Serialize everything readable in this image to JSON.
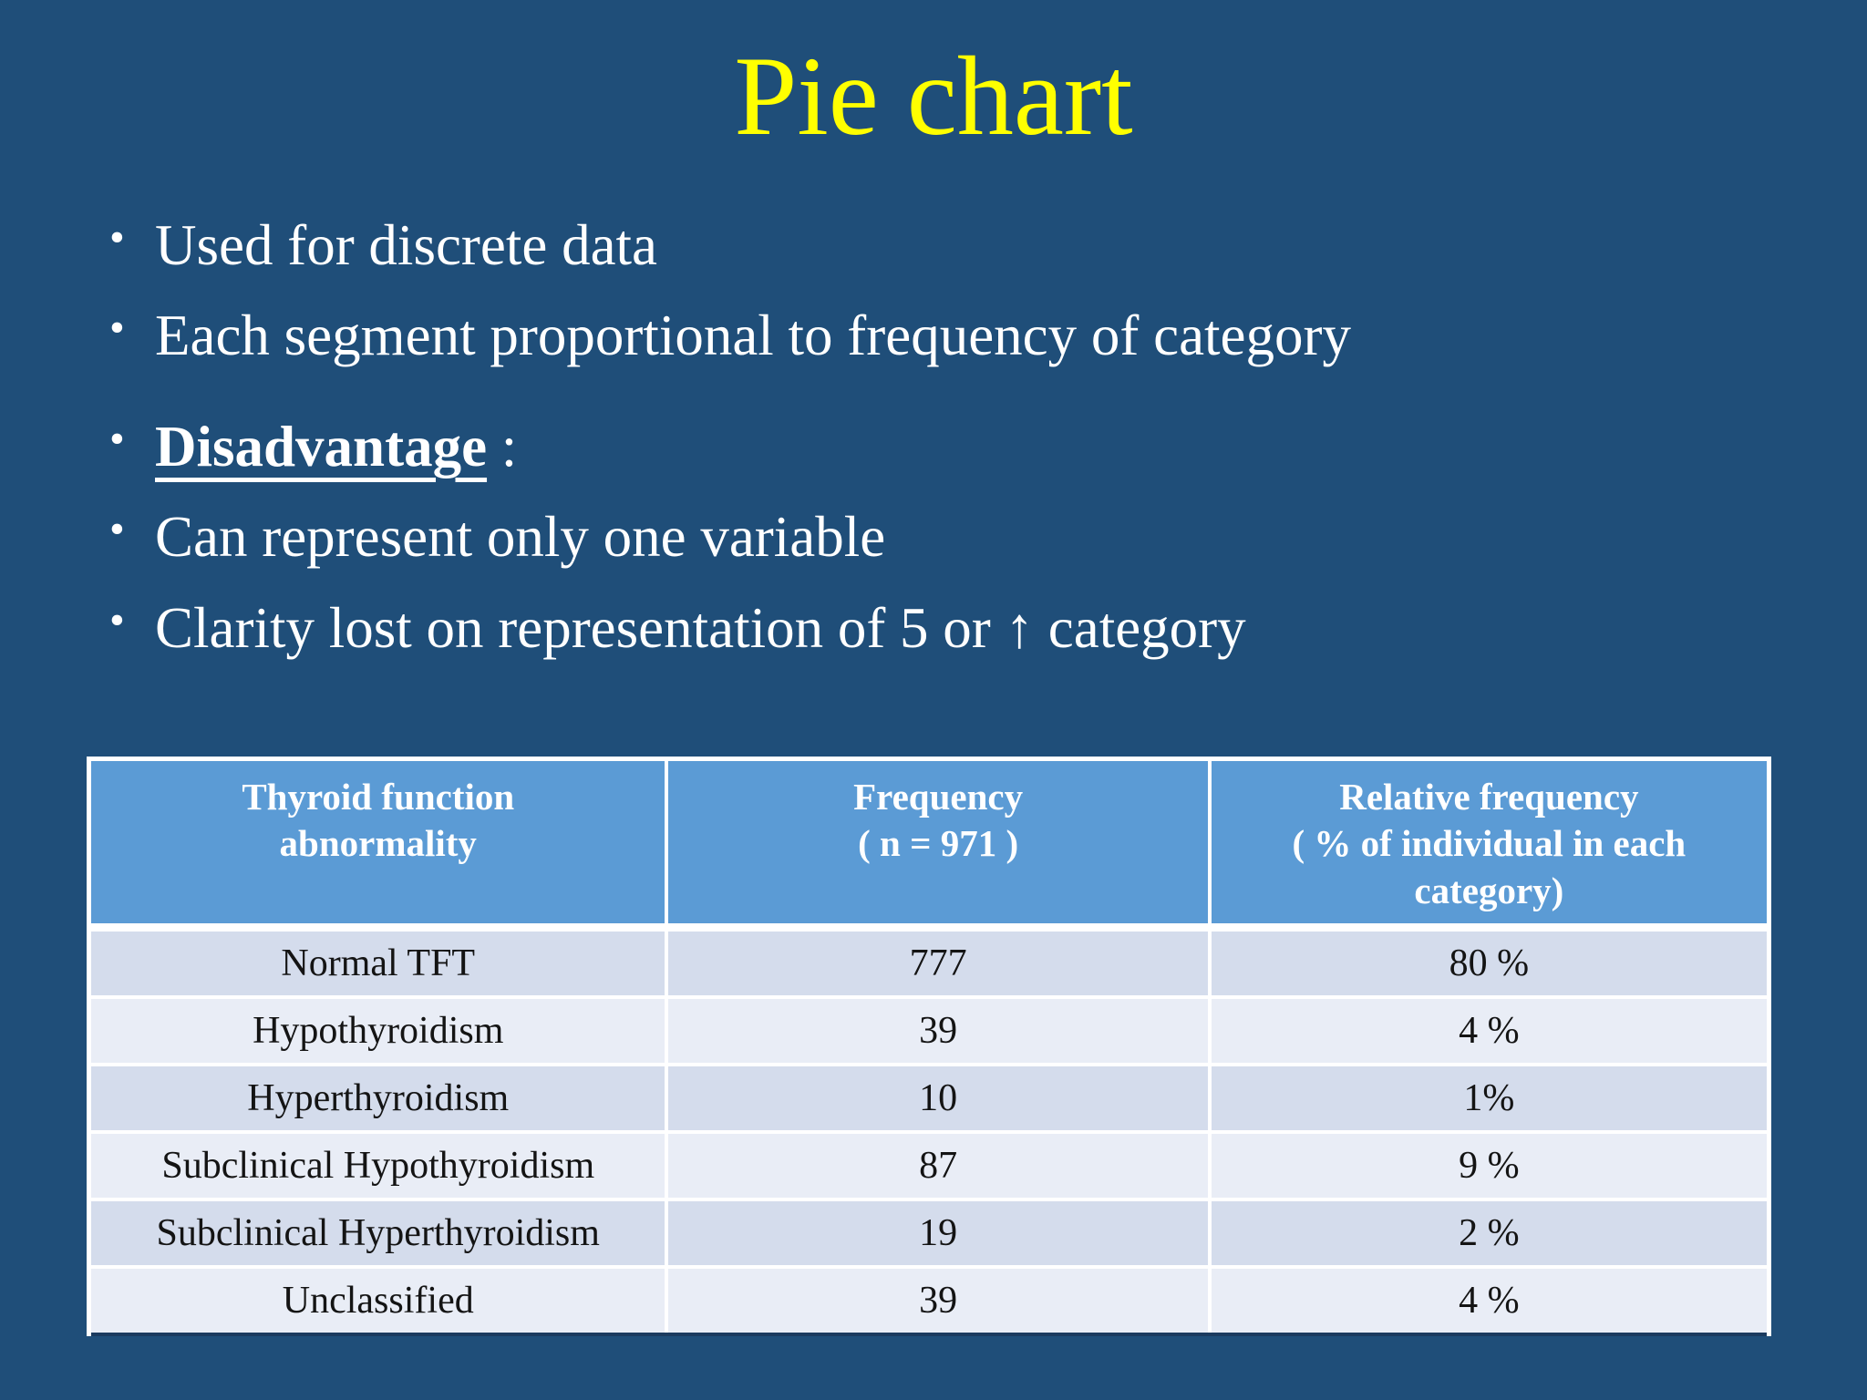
{
  "slide": {
    "title": "Pie chart",
    "bullets_top": [
      "Used for discrete data",
      "Each segment proportional to frequency of category"
    ],
    "disadvantage_label": "Disadvantage",
    "disadvantage_suffix": " :",
    "bullets_bottom": [
      "Can represent only one variable",
      "Clarity lost on representation of 5 or ↑ category"
    ],
    "colors": {
      "background": "#1F4E79",
      "title_text": "#FFFF00",
      "body_text": "#FFFFFF",
      "table_header_bg": "#5B9BD5",
      "table_header_text": "#FFFFFF",
      "row_band_dark": "#D4DCEC",
      "row_band_light": "#E9EDF6",
      "table_text": "#141414",
      "grid_lines": "#FFFFFF"
    }
  },
  "table": {
    "headers": [
      "Thyroid function\nabnormality",
      "Frequency\n( n = 971 )",
      "Relative frequency\n( % of individual in each category)"
    ],
    "rows": [
      [
        "Normal TFT",
        "777",
        "80 %"
      ],
      [
        "Hypothyroidism",
        "39",
        "4 %"
      ],
      [
        "Hyperthyroidism",
        "10",
        "1%"
      ],
      [
        "Subclinical Hypothyroidism",
        "87",
        "9 %"
      ],
      [
        "Subclinical Hyperthyroidism",
        "19",
        "2 %"
      ],
      [
        "Unclassified",
        "39",
        "4 %"
      ]
    ]
  },
  "chart_data": {
    "type": "table",
    "title": "Pie chart",
    "columns": [
      "Thyroid function abnormality",
      "Frequency ( n = 971 )",
      "Relative frequency ( % of individual in each category)"
    ],
    "categories": [
      "Normal TFT",
      "Hypothyroidism",
      "Hyperthyroidism",
      "Subclinical Hypothyroidism",
      "Subclinical Hyperthyroidism",
      "Unclassified"
    ],
    "series": [
      {
        "name": "Frequency",
        "values": [
          777,
          39,
          10,
          87,
          19,
          39
        ]
      },
      {
        "name": "Relative frequency (%)",
        "values": [
          80,
          4,
          1,
          9,
          2,
          4
        ]
      }
    ],
    "n": 971
  }
}
